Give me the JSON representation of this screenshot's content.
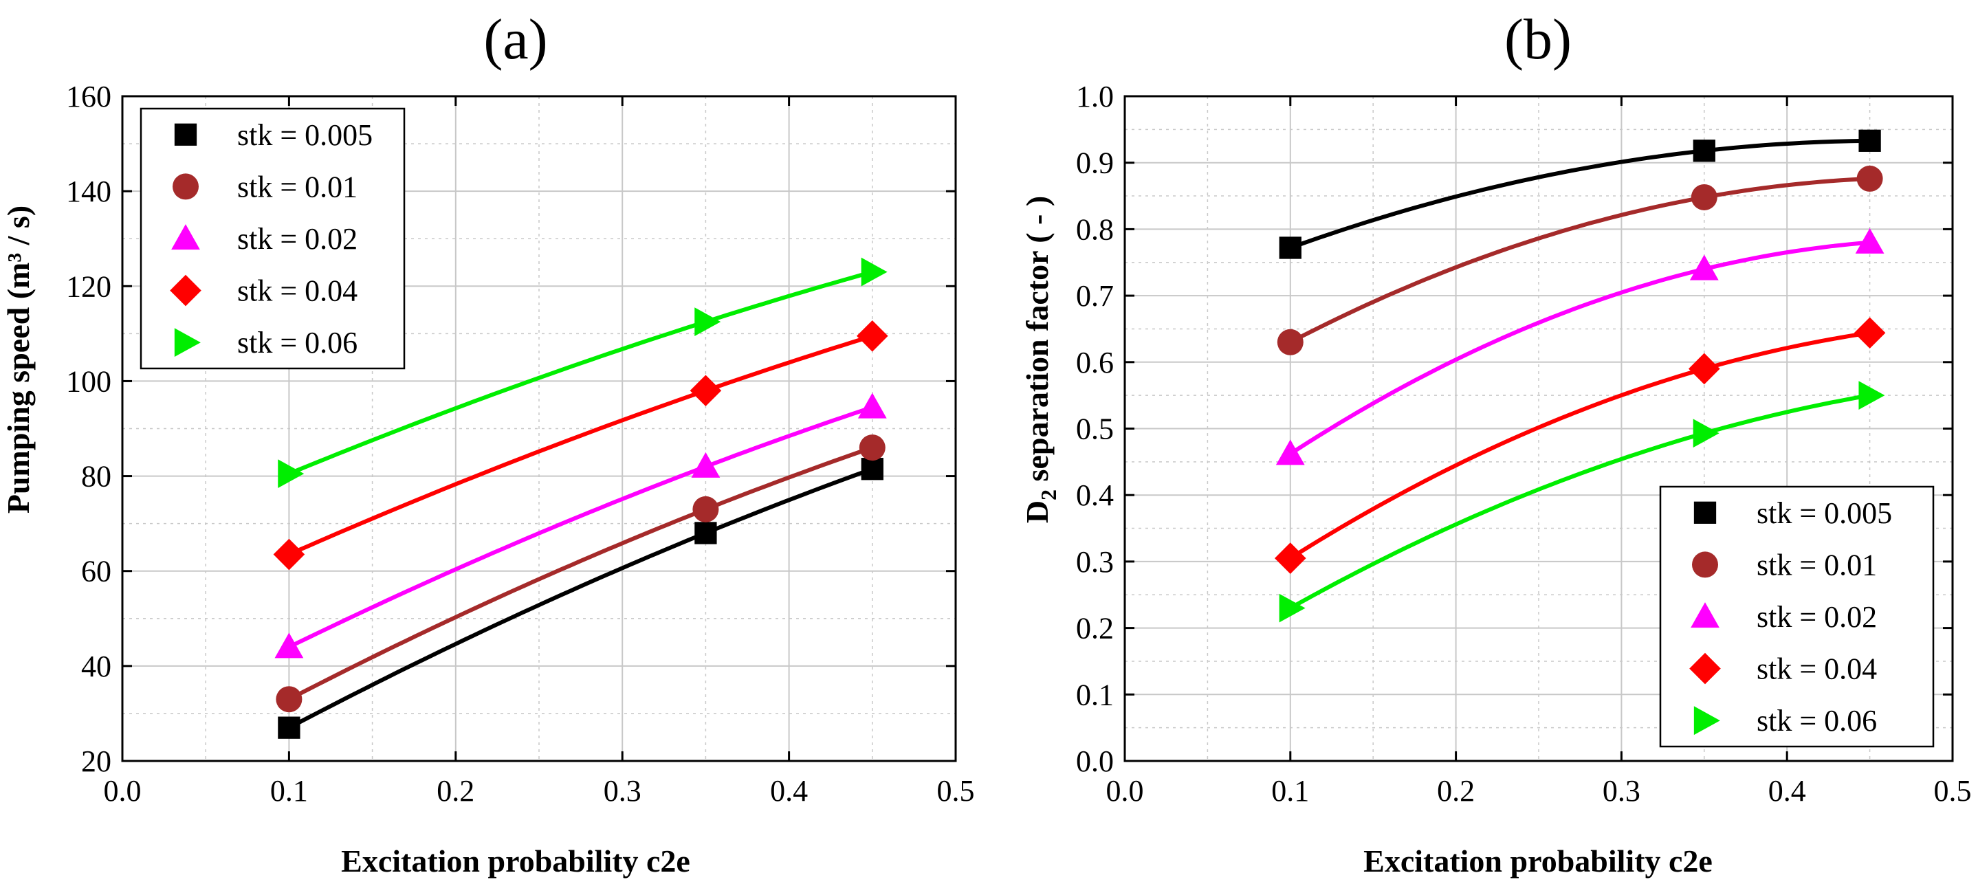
{
  "chart_data": [
    {
      "type": "line",
      "panel_label": "(a)",
      "title": "",
      "xlabel": "Excitation probability c2e",
      "ylabel": "Pumping speed (m³ / s)",
      "xlim": [
        0.0,
        0.5
      ],
      "ylim": [
        20,
        160
      ],
      "xticks": [
        0.0,
        0.1,
        0.2,
        0.3,
        0.4,
        0.5
      ],
      "xtick_labels": [
        "0.0",
        "0.1",
        "0.2",
        "0.3",
        "0.4",
        "0.5"
      ],
      "yticks": [
        20,
        40,
        60,
        80,
        100,
        120,
        140,
        160
      ],
      "ytick_labels": [
        "20",
        "40",
        "60",
        "80",
        "100",
        "120",
        "140",
        "160"
      ],
      "grid": true,
      "legend_position": "top-left",
      "x": [
        0.1,
        0.35,
        0.45
      ],
      "series": [
        {
          "name": "stk = 0.005",
          "values": [
            27,
            68,
            81.5
          ],
          "color": "#000000",
          "marker": "square"
        },
        {
          "name": "stk = 0.01",
          "values": [
            33,
            73,
            86
          ],
          "color": "#a52a2a",
          "marker": "circle"
        },
        {
          "name": "stk = 0.02",
          "values": [
            44,
            82,
            94.5
          ],
          "color": "#ff00ff",
          "marker": "triangle-up"
        },
        {
          "name": "stk = 0.04",
          "values": [
            63.5,
            98,
            109.5
          ],
          "color": "#ff0000",
          "marker": "diamond"
        },
        {
          "name": "stk = 0.06",
          "values": [
            80.5,
            112.5,
            123
          ],
          "color": "#00ee00",
          "marker": "triangle-right"
        }
      ]
    },
    {
      "type": "line",
      "panel_label": "(b)",
      "title": "",
      "xlabel": "Excitation probability c2e",
      "ylabel_prefix": "D",
      "ylabel_subscript": "2",
      "ylabel_suffix": " separation factor ( - )",
      "xlim": [
        0.0,
        0.5
      ],
      "ylim": [
        0.0,
        1.0
      ],
      "xticks": [
        0.0,
        0.1,
        0.2,
        0.3,
        0.4,
        0.5
      ],
      "xtick_labels": [
        "0.0",
        "0.1",
        "0.2",
        "0.3",
        "0.4",
        "0.5"
      ],
      "yticks": [
        0.0,
        0.1,
        0.2,
        0.3,
        0.4,
        0.5,
        0.6,
        0.7,
        0.8,
        0.9,
        1.0
      ],
      "ytick_labels": [
        "0.0",
        "0.1",
        "0.2",
        "0.3",
        "0.4",
        "0.5",
        "0.6",
        "0.7",
        "0.8",
        "0.9",
        "1.0"
      ],
      "grid": true,
      "legend_position": "bottom-right",
      "x": [
        0.1,
        0.35,
        0.45
      ],
      "series": [
        {
          "name": "stk = 0.005",
          "values": [
            0.772,
            0.918,
            0.933
          ],
          "color": "#000000",
          "marker": "square"
        },
        {
          "name": "stk = 0.01",
          "values": [
            0.63,
            0.848,
            0.876
          ],
          "color": "#a52a2a",
          "marker": "circle"
        },
        {
          "name": "stk = 0.02",
          "values": [
            0.462,
            0.74,
            0.78
          ],
          "color": "#ff00ff",
          "marker": "triangle-up"
        },
        {
          "name": "stk = 0.04",
          "values": [
            0.305,
            0.59,
            0.644
          ],
          "color": "#ff0000",
          "marker": "diamond"
        },
        {
          "name": "stk = 0.06",
          "values": [
            0.23,
            0.493,
            0.55
          ],
          "color": "#00ee00",
          "marker": "triangle-right"
        }
      ]
    }
  ]
}
